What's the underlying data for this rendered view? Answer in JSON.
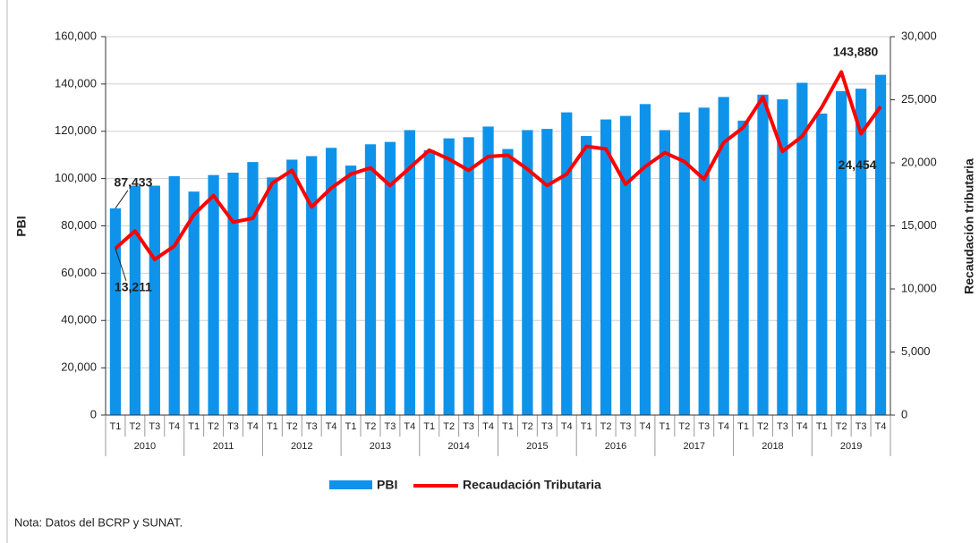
{
  "chart_data": {
    "type": "bar-line",
    "categories": [
      "T1",
      "T2",
      "T3",
      "T4",
      "T1",
      "T2",
      "T3",
      "T4",
      "T1",
      "T2",
      "T3",
      "T4",
      "T1",
      "T2",
      "T3",
      "T4",
      "T1",
      "T2",
      "T3",
      "T4",
      "T1",
      "T2",
      "T3",
      "T4",
      "T1",
      "T2",
      "T3",
      "T4",
      "T1",
      "T2",
      "T3",
      "T4",
      "T1",
      "T2",
      "T3",
      "T4",
      "T1",
      "T2",
      "T3",
      "T4"
    ],
    "years": [
      "2010",
      "2011",
      "2012",
      "2013",
      "2014",
      "2015",
      "2016",
      "2017",
      "2018",
      "2019"
    ],
    "series": [
      {
        "name": "PBI",
        "color": "#0f93ea",
        "values": [
          87433,
          97000,
          97000,
          101000,
          94500,
          101500,
          102500,
          107000,
          100500,
          108000,
          109500,
          113000,
          105500,
          114500,
          115500,
          120500,
          112000,
          117000,
          117500,
          122000,
          112500,
          120500,
          121000,
          128000,
          118000,
          125000,
          126500,
          131500,
          120500,
          128000,
          130000,
          134500,
          124500,
          135500,
          133500,
          140500,
          127500,
          137000,
          138000,
          143880
        ],
        "value_labels": [
          "87,433",
          null,
          null,
          null,
          null,
          null,
          null,
          null,
          null,
          null,
          null,
          null,
          null,
          null,
          null,
          null,
          null,
          null,
          null,
          null,
          null,
          null,
          null,
          null,
          null,
          null,
          null,
          null,
          null,
          null,
          null,
          null,
          null,
          null,
          null,
          null,
          null,
          null,
          null,
          "143,880"
        ]
      },
      {
        "name": "Recaudación Tributaria",
        "color": "#ff0000",
        "axis": "y2",
        "values": [
          13211,
          14600,
          12340,
          13400,
          15900,
          17400,
          15300,
          15600,
          18400,
          19400,
          16500,
          18000,
          19100,
          19600,
          18200,
          19600,
          21000,
          20300,
          19400,
          20500,
          20600,
          19500,
          18200,
          19100,
          21300,
          21100,
          18300,
          19700,
          20800,
          20100,
          18700,
          21600,
          22800,
          25200,
          20900,
          22100,
          24400,
          27200,
          22300,
          24454
        ],
        "value_labels": [
          "13,211",
          null,
          null,
          null,
          null,
          null,
          null,
          null,
          null,
          null,
          null,
          null,
          null,
          null,
          null,
          null,
          null,
          null,
          null,
          null,
          null,
          null,
          null,
          null,
          null,
          null,
          null,
          null,
          null,
          null,
          null,
          null,
          null,
          null,
          null,
          null,
          null,
          null,
          null,
          "24,454"
        ]
      }
    ],
    "ylabel": "PBI",
    "y2label": "Recaudación tributaria",
    "ylim": [
      0,
      160000
    ],
    "yticks": [
      0,
      {
        "value": 20000,
        "label": "20,000"
      },
      {
        "value": 40000,
        "label": "40,000"
      },
      {
        "value": 60000,
        "label": "60,000"
      },
      {
        "value": 80000,
        "label": "80,000"
      },
      {
        "value": 100000,
        "label": "100,000"
      },
      {
        "value": 120000,
        "label": "120,000"
      },
      {
        "value": 140000,
        "label": "140,000"
      },
      {
        "value": 160000,
        "label": "160,000"
      }
    ],
    "y2lim": [
      0,
      30000
    ],
    "y2ticks": [
      0,
      {
        "value": 5000,
        "label": "5,000"
      },
      {
        "value": 10000,
        "label": "10,000"
      },
      {
        "value": 15000,
        "label": "15,000"
      },
      {
        "value": 20000,
        "label": "20,000"
      },
      {
        "value": 25000,
        "label": "25,000"
      },
      {
        "value": 30000,
        "label": "30,000"
      }
    ],
    "grid": true,
    "legend": "bottom"
  },
  "note": "Nota: Datos del BCRP y SUNAT."
}
